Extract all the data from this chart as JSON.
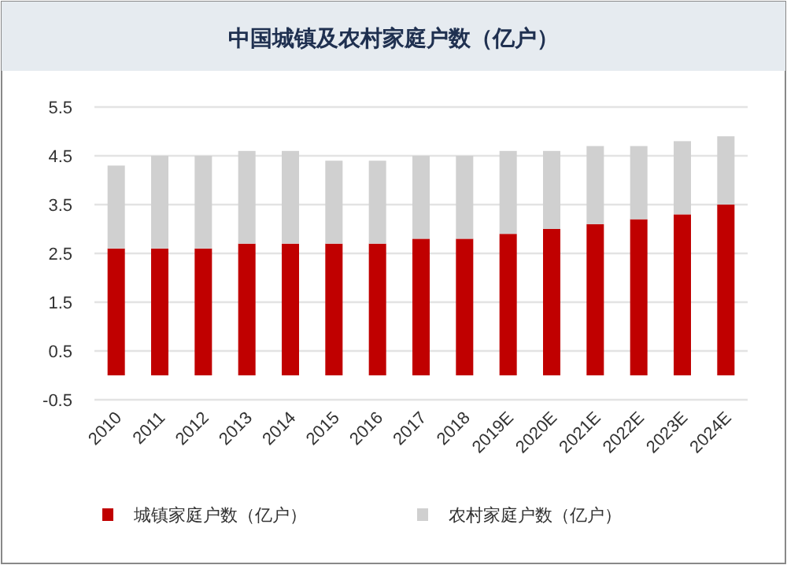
{
  "chart_data": {
    "type": "bar",
    "title": "中国城镇及农村家庭户数（亿户）",
    "stacked": true,
    "categories": [
      "2010",
      "2011",
      "2012",
      "2013",
      "2014",
      "2015",
      "2016",
      "2017",
      "2018",
      "2019E",
      "2020E",
      "2021E",
      "2022E",
      "2023E",
      "2024E"
    ],
    "series": [
      {
        "name": "城镇家庭户数（亿户）",
        "color": "#c00000",
        "values": [
          2.6,
          2.6,
          2.6,
          2.7,
          2.7,
          2.7,
          2.7,
          2.8,
          2.8,
          2.9,
          3.0,
          3.1,
          3.2,
          3.3,
          3.5
        ]
      },
      {
        "name": "农村家庭户数（亿户）",
        "color": "#d0d0d0",
        "values": [
          1.7,
          1.9,
          1.9,
          1.9,
          1.9,
          1.7,
          1.7,
          1.7,
          1.7,
          1.7,
          1.6,
          1.6,
          1.5,
          1.5,
          1.4
        ]
      }
    ],
    "ylim": [
      -0.5,
      5.5
    ],
    "yticks": [
      -0.5,
      0.5,
      1.5,
      2.5,
      3.5,
      4.5,
      5.5
    ],
    "grid": "y",
    "legend": "bottom"
  }
}
